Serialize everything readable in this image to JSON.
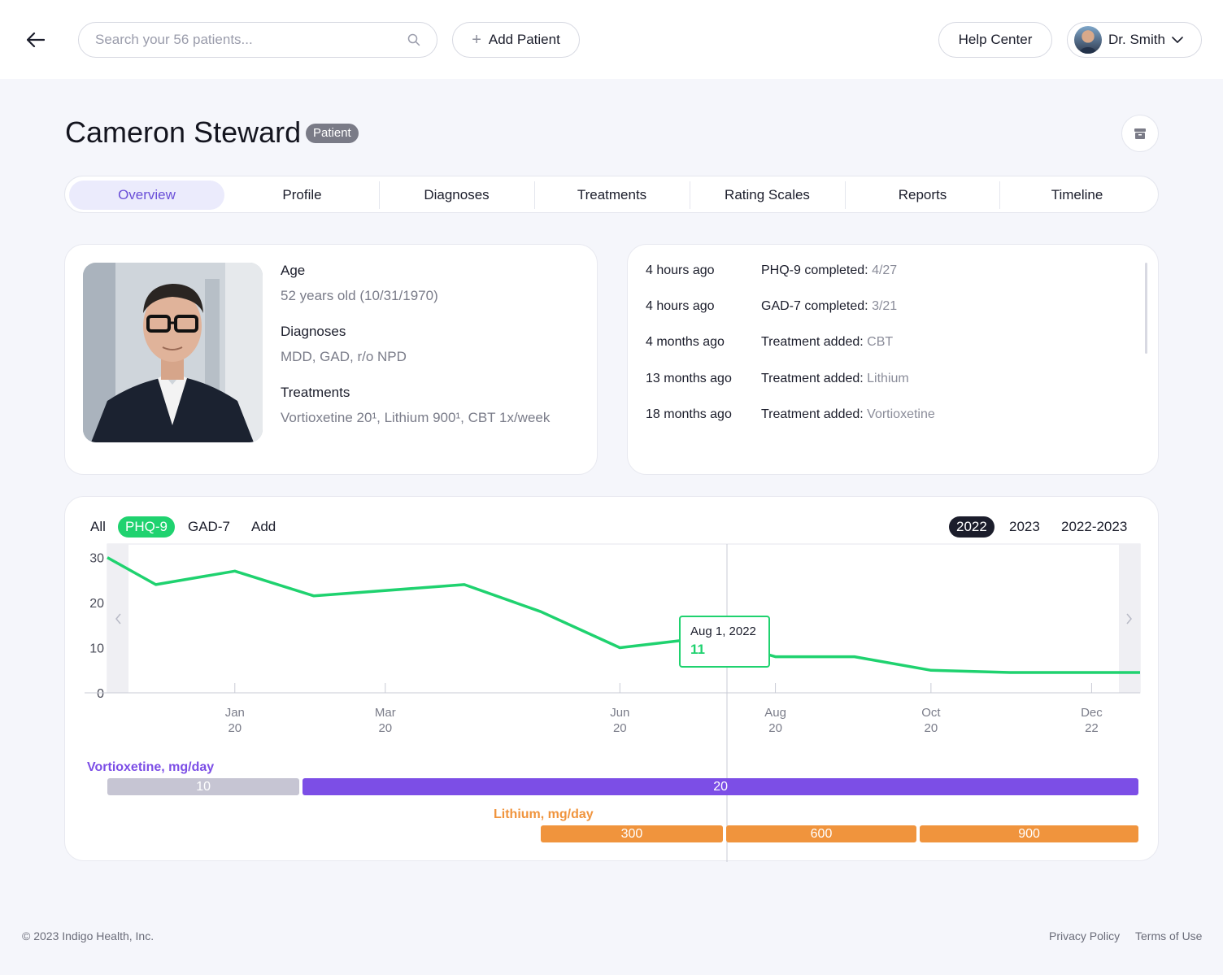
{
  "header": {
    "search_placeholder": "Search your 56 patients...",
    "add_patient_label": "Add Patient",
    "help_label": "Help Center",
    "user_name": "Dr. Smith"
  },
  "patient": {
    "name": "Cameron Steward",
    "badge": "Patient"
  },
  "tabs": [
    {
      "label": "Overview",
      "active": true
    },
    {
      "label": "Profile"
    },
    {
      "label": "Diagnoses"
    },
    {
      "label": "Treatments"
    },
    {
      "label": "Rating Scales"
    },
    {
      "label": "Reports"
    },
    {
      "label": "Timeline"
    }
  ],
  "info": {
    "age_label": "Age",
    "age_value": "52 years old (10/31/1970)",
    "diagnoses_label": "Diagnoses",
    "diagnoses_value": "MDD, GAD, r/o NPD",
    "treatments_label": "Treatments",
    "treatments_value": "Vortioxetine 20¹, Lithium 900¹, CBT 1x/week"
  },
  "activity": [
    {
      "time": "4 hours ago",
      "label": "PHQ-9 completed:",
      "value": "4/27"
    },
    {
      "time": "4 hours ago",
      "label": "GAD-7 completed:",
      "value": "3/21"
    },
    {
      "time": "4 months ago",
      "label": "Treatment added:",
      "value": "CBT"
    },
    {
      "time": "13 months ago",
      "label": "Treatment added:",
      "value": "Lithium"
    },
    {
      "time": "18 months ago",
      "label": "Treatment added:",
      "value": "Vortioxetine"
    }
  ],
  "chart_filters": {
    "scales": [
      "All",
      "PHQ-9",
      "GAD-7",
      "Add"
    ],
    "active_scale": "PHQ-9",
    "years": [
      "2022",
      "2023",
      "2022-2023"
    ],
    "active_year": "2022"
  },
  "chart_data": {
    "type": "line",
    "series": [
      {
        "name": "PHQ-9",
        "color": "#1fd26f",
        "x": [
          "2021-12-01",
          "2021-12-20",
          "2022-01-20",
          "2022-02-20",
          "2022-04-20",
          "2022-05-20",
          "2022-06-20",
          "2022-07-20",
          "2022-08-01",
          "2022-08-20",
          "2022-09-20",
          "2022-10-20",
          "2022-11-20",
          "2022-12-20",
          "2023-01-10"
        ],
        "y": [
          30,
          24,
          27,
          21.5,
          24,
          18,
          10,
          12,
          11,
          8,
          8,
          5,
          4.5,
          4.5,
          4.5
        ]
      }
    ],
    "xticks": [
      {
        "date": "2022-01-20",
        "month": "Jan",
        "day": "20"
      },
      {
        "date": "2022-03-20",
        "month": "Mar",
        "day": "20"
      },
      {
        "date": "2022-06-20",
        "month": "Jun",
        "day": "20"
      },
      {
        "date": "2022-08-20",
        "month": "Aug",
        "day": "20"
      },
      {
        "date": "2022-10-20",
        "month": "Oct",
        "day": "20"
      },
      {
        "date": "2022-12-22",
        "month": "Dec",
        "day": "22"
      }
    ],
    "yticks": [
      0,
      10,
      20,
      30
    ],
    "ylim": [
      0,
      33
    ],
    "xlim": [
      "2021-12-01",
      "2023-01-10"
    ],
    "tooltip": {
      "date": "Aug 1, 2022",
      "value": "11"
    },
    "medications": [
      {
        "name": "Vortioxetine, mg/day",
        "color": "#7c4ee6",
        "segments": [
          {
            "label": "10",
            "start": "2021-12-01",
            "end": "2022-02-15",
            "color": "#c6c5d3"
          },
          {
            "label": "20",
            "start": "2022-02-15",
            "end": "2023-01-10"
          }
        ]
      },
      {
        "name": "Lithium, mg/day",
        "color": "#f0943d",
        "segments": [
          {
            "label": "300",
            "start": "2022-05-20",
            "end": "2022-07-31"
          },
          {
            "label": "600",
            "start": "2022-07-31",
            "end": "2022-10-15"
          },
          {
            "label": "900",
            "start": "2022-10-15",
            "end": "2023-01-10"
          }
        ]
      }
    ]
  },
  "footer": {
    "copyright": "© 2023 Indigo Health, Inc.",
    "privacy": "Privacy Policy",
    "terms": "Terms of Use"
  }
}
